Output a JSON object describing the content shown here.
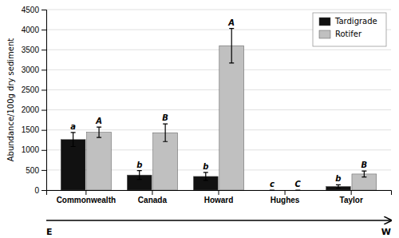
{
  "chart_data": {
    "type": "bar",
    "categories": [
      "Commonwealth",
      "Canada",
      "Howard",
      "Hughes",
      "Taylor"
    ],
    "series": [
      {
        "name": "Tardigrade",
        "color": "#111111",
        "values": [
          1260,
          375,
          340,
          0,
          90
        ],
        "errors": [
          175,
          110,
          100,
          0,
          40
        ],
        "annotations": [
          "a",
          "b",
          "b",
          "c",
          "b"
        ]
      },
      {
        "name": "Rotifer",
        "color": "#c0c0c0",
        "values": [
          1440,
          1430,
          3600,
          0,
          400
        ],
        "errors": [
          130,
          220,
          430,
          0,
          75
        ],
        "annotations": [
          "A",
          "B",
          "A",
          "C",
          "B"
        ]
      }
    ],
    "y_label": "Abundance/100g dry sediment",
    "ylim": [
      0,
      4500
    ],
    "yticks": [
      0,
      500,
      1000,
      1500,
      2000,
      2500,
      3000,
      3500,
      4000,
      4500
    ],
    "grid": true,
    "legend": "upper right",
    "annotations": [
      "E",
      "W"
    ]
  }
}
